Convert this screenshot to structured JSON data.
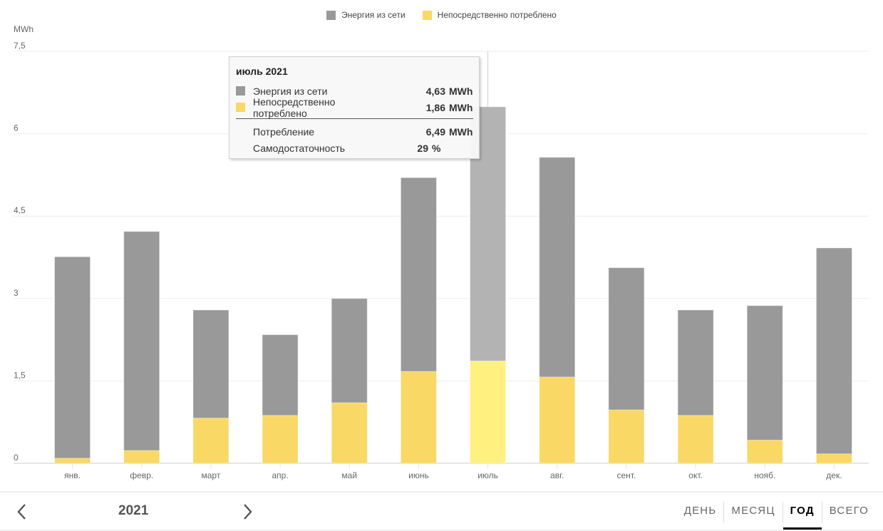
{
  "chart_data": {
    "type": "bar",
    "stacked": true,
    "title": "",
    "xlabel": "",
    "ylabel": "MWh",
    "ylim": [
      0,
      7.5
    ],
    "yticks": [
      0,
      1.5,
      3,
      4.5,
      6,
      7.5
    ],
    "ytick_labels": [
      "0",
      "1,5",
      "3",
      "4,5",
      "6",
      "7,5"
    ],
    "grid": true,
    "legend_position": "top-center",
    "categories": [
      "янв.",
      "февр.",
      "март",
      "апр.",
      "май",
      "июнь",
      "июль",
      "авг.",
      "сент.",
      "окт.",
      "нояб.",
      "дек."
    ],
    "series": [
      {
        "name": "Непосредственно потреблено",
        "color": "#f9d866",
        "values": [
          0.09,
          0.23,
          0.82,
          0.87,
          1.1,
          1.67,
          1.86,
          1.57,
          0.97,
          0.87,
          0.42,
          0.17
        ]
      },
      {
        "name": "Энергия из сети",
        "color": "#999999",
        "values": [
          3.67,
          3.99,
          1.97,
          1.47,
          1.9,
          3.53,
          4.63,
          4.0,
          2.59,
          1.92,
          2.45,
          3.75
        ]
      }
    ],
    "highlighted_index": 6,
    "highlight_colors": {
      "grid": "#b3b3b3",
      "direct": "#fff07f"
    }
  },
  "legend": [
    {
      "label": "Энергия из сети",
      "color": "#999999"
    },
    {
      "label": "Непосредственно потреблено",
      "color": "#f9d866"
    }
  ],
  "tooltip": {
    "title": "июль 2021",
    "rows": [
      {
        "label": "Энергия из сети",
        "value": "4,63",
        "unit": "MWh",
        "color": "#999999"
      },
      {
        "label": "Непосредственно потреблено",
        "value": "1,86",
        "unit": "MWh",
        "color": "#f9d866"
      }
    ],
    "summary": [
      {
        "label": "Потребление",
        "value": "6,49",
        "unit": "MWh"
      },
      {
        "label": "Самодостаточность",
        "value": "29",
        "unit": "%"
      }
    ]
  },
  "navigation": {
    "year": "2021",
    "prev_icon": "chevron-left-icon",
    "next_icon": "chevron-right-icon"
  },
  "tabs": [
    {
      "label": "ДЕНЬ",
      "active": false
    },
    {
      "label": "МЕСЯЦ",
      "active": false
    },
    {
      "label": "ГОД",
      "active": true
    },
    {
      "label": "ВСЕГО",
      "active": false
    }
  ]
}
